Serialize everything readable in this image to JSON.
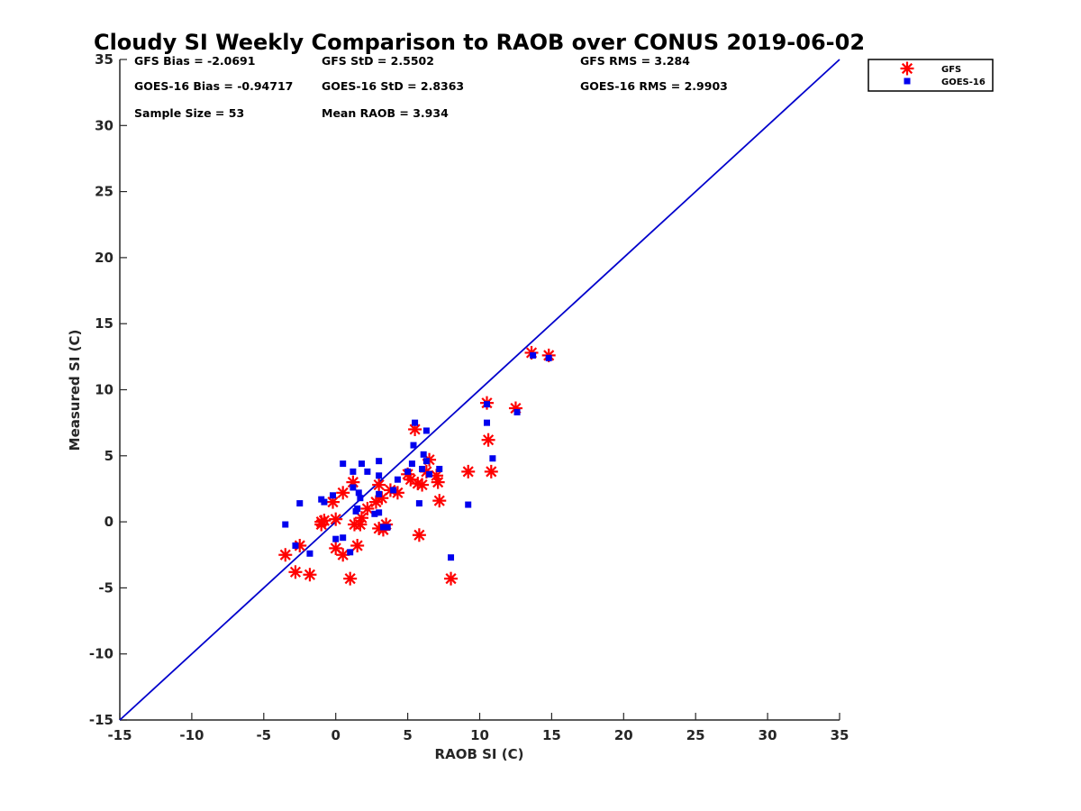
{
  "chart_data": {
    "type": "scatter",
    "title": "Cloudy SI Weekly Comparison to RAOB over CONUS 2019-06-02",
    "xlabel": "RAOB SI (C)",
    "ylabel": "Measured SI (C)",
    "xlim": [
      -15,
      35
    ],
    "ylim": [
      -15,
      35
    ],
    "xticks": [
      -15,
      -10,
      -5,
      0,
      5,
      10,
      15,
      20,
      25,
      30,
      35
    ],
    "yticks": [
      -15,
      -10,
      -5,
      0,
      5,
      10,
      15,
      20,
      25,
      30,
      35
    ],
    "grid": false,
    "legend_position": "top-right, outside plot",
    "reference_line": {
      "x": [
        -15,
        35
      ],
      "y": [
        -15,
        35
      ],
      "color": "#0000cc"
    },
    "stats": [
      [
        "GFS Bias = -2.0691",
        "GFS StD = 2.5502",
        "GFS RMS = 3.284"
      ],
      [
        "GOES-16 Bias = -0.94717",
        "GOES-16 StD = 2.8363",
        "GOES-16 RMS = 2.9903"
      ],
      [
        "Sample Size = 53",
        "Mean RAOB = 3.934",
        ""
      ]
    ],
    "series": [
      {
        "name": "GFS",
        "marker": "asterisk",
        "color": "#ff0000",
        "points": [
          [
            -3.5,
            -2.5
          ],
          [
            -2.5,
            -1.8
          ],
          [
            -2.8,
            -3.8
          ],
          [
            -1.8,
            -4
          ],
          [
            -1,
            0
          ],
          [
            -0.8,
            0.1
          ],
          [
            -1,
            -0.2
          ],
          [
            -0.2,
            1.5
          ],
          [
            0,
            0.2
          ],
          [
            0,
            -2
          ],
          [
            0.5,
            -2.5
          ],
          [
            0.5,
            2.2
          ],
          [
            1,
            -4.3
          ],
          [
            1.2,
            3
          ],
          [
            1.3,
            -0.2
          ],
          [
            1.5,
            -1.8
          ],
          [
            1.7,
            -0.2
          ],
          [
            1.8,
            0.3
          ],
          [
            2.2,
            1
          ],
          [
            2.8,
            1.5
          ],
          [
            3,
            2.8
          ],
          [
            3,
            -0.5
          ],
          [
            3.2,
            1.8
          ],
          [
            3.3,
            -0.6
          ],
          [
            3.5,
            -0.2
          ],
          [
            3.8,
            2.4
          ],
          [
            4.3,
            2.2
          ],
          [
            5,
            3.6
          ],
          [
            5.2,
            3.2
          ],
          [
            5.5,
            7
          ],
          [
            5.7,
            2.9
          ],
          [
            5.8,
            -1
          ],
          [
            6,
            2.8
          ],
          [
            6.3,
            3.8
          ],
          [
            6.5,
            4.7
          ],
          [
            7,
            3.5
          ],
          [
            7.1,
            3
          ],
          [
            7.2,
            1.6
          ],
          [
            9.2,
            3.8
          ],
          [
            8,
            -4.3
          ],
          [
            10.5,
            9
          ],
          [
            10.6,
            6.2
          ],
          [
            10.8,
            3.8
          ],
          [
            12.5,
            8.6
          ],
          [
            13.6,
            12.8
          ],
          [
            14.8,
            12.6
          ]
        ]
      },
      {
        "name": "GOES-16",
        "marker": "square",
        "color": "#0000ee",
        "points": [
          [
            -3.5,
            -0.2
          ],
          [
            -2.8,
            -1.8
          ],
          [
            -2.5,
            1.4
          ],
          [
            -1.8,
            -2.4
          ],
          [
            -1,
            1.7
          ],
          [
            -0.8,
            1.5
          ],
          [
            -0.2,
            2
          ],
          [
            0,
            -1.3
          ],
          [
            0.5,
            4.4
          ],
          [
            0.5,
            -1.2
          ],
          [
            1,
            -2.3
          ],
          [
            1.2,
            3.8
          ],
          [
            1.2,
            2.6
          ],
          [
            1.4,
            0.8
          ],
          [
            1.5,
            1
          ],
          [
            1.6,
            2.2
          ],
          [
            1.7,
            1.8
          ],
          [
            1.8,
            4.4
          ],
          [
            2.2,
            3.8
          ],
          [
            2.7,
            0.6
          ],
          [
            3,
            4.6
          ],
          [
            3,
            3.5
          ],
          [
            3,
            0.7
          ],
          [
            3.3,
            -0.4
          ],
          [
            3,
            2.1
          ],
          [
            3.6,
            -0.4
          ],
          [
            4,
            2.4
          ],
          [
            4.3,
            3.2
          ],
          [
            5,
            3.8
          ],
          [
            5.3,
            4.4
          ],
          [
            5.4,
            5.8
          ],
          [
            5.5,
            7.5
          ],
          [
            5.8,
            1.4
          ],
          [
            6,
            4
          ],
          [
            6.1,
            5.1
          ],
          [
            6.3,
            6.9
          ],
          [
            6.3,
            4.6
          ],
          [
            6.5,
            3.6
          ],
          [
            7.2,
            4
          ],
          [
            8,
            -2.7
          ],
          [
            9.2,
            1.3
          ],
          [
            10.5,
            7.5
          ],
          [
            10.5,
            8.9
          ],
          [
            10.9,
            4.8
          ],
          [
            12.6,
            8.3
          ],
          [
            13.7,
            12.6
          ],
          [
            14.8,
            12.4
          ]
        ]
      }
    ]
  }
}
